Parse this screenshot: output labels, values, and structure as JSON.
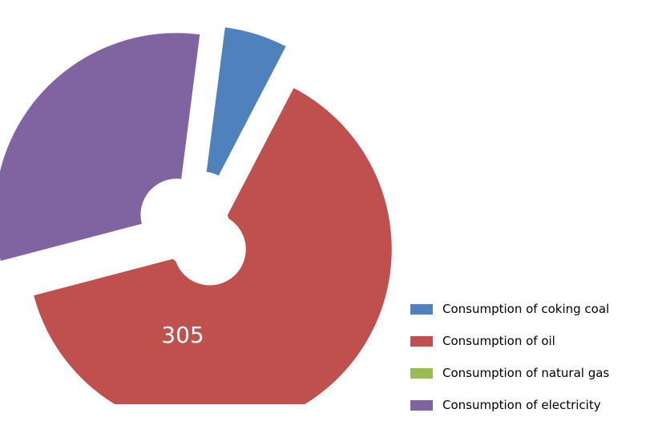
{
  "chart_data": {
    "type": "pie",
    "title": "",
    "categories": [
      "Consumption of coking coal",
      "Consumption of oil",
      "Consumption of natural gas",
      "Consumption of electricity"
    ],
    "values": [
      27,
      305,
      0,
      150
    ],
    "data_labels": [
      "",
      "305",
      "",
      ""
    ],
    "colors": [
      "#4f81bd",
      "#c0504d",
      "#9bbb59",
      "#8064a2"
    ],
    "exploded": true,
    "legend": "bottom-right"
  },
  "legend": {
    "items": [
      {
        "label": "Consumption of coking coal",
        "color": "#4f81bd"
      },
      {
        "label": "Consumption of oil",
        "color": "#c0504d"
      },
      {
        "label": "Consumption of natural gas",
        "color": "#9bbb59"
      },
      {
        "label": "Consumption of electricity",
        "color": "#8064a2"
      }
    ]
  }
}
